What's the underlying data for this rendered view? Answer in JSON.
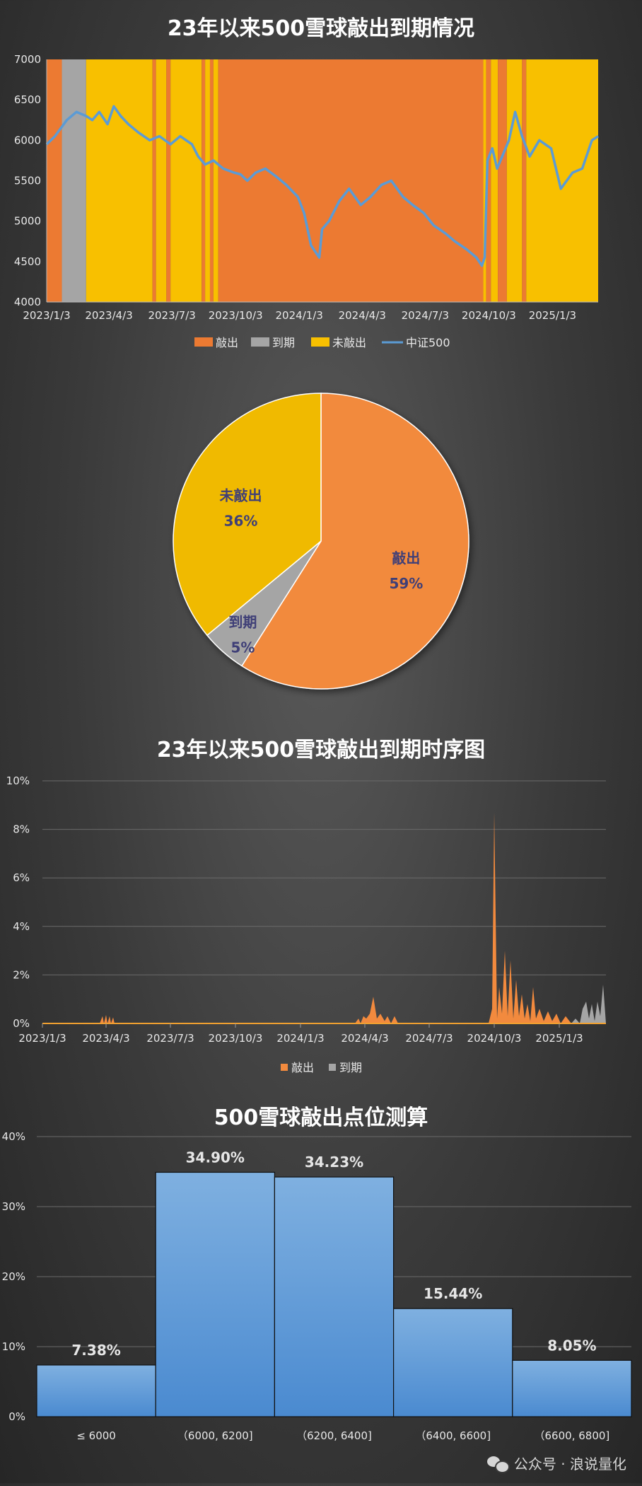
{
  "chart_data": [
    {
      "type": "area",
      "title": "23年以来500雪球敲出到期情况",
      "ylim": [
        4000,
        7000
      ],
      "yticks": [
        4000,
        4500,
        5000,
        5500,
        6000,
        6500,
        7000
      ],
      "xticks": [
        "2023/1/3",
        "2023/4/3",
        "2023/7/3",
        "2023/10/3",
        "2024/1/3",
        "2024/4/3",
        "2024/7/3",
        "2024/10/3",
        "2025/1/3"
      ],
      "legend": [
        "敲出",
        "到期",
        "未敲出",
        "中证500"
      ],
      "legend_position": "bottom",
      "colors": {
        "敲出": "#ec7a32",
        "到期": "#a5a5a5",
        "未敲出": "#f8c000",
        "中证500": "#5b9bd5"
      },
      "status_bands": [
        {
          "start": "2023/1/3",
          "end": "2023/1/25",
          "status": "敲出"
        },
        {
          "start": "2023/1/25",
          "end": "2023/3/1",
          "status": "到期"
        },
        {
          "start": "2023/3/1",
          "end": "2023/6/5",
          "status": "未敲出"
        },
        {
          "start": "2023/6/5",
          "end": "2023/6/10",
          "status": "敲出"
        },
        {
          "start": "2023/6/10",
          "end": "2023/6/25",
          "status": "未敲出"
        },
        {
          "start": "2023/6/25",
          "end": "2023/7/1",
          "status": "敲出"
        },
        {
          "start": "2023/7/1",
          "end": "2023/8/15",
          "status": "未敲出"
        },
        {
          "start": "2023/8/15",
          "end": "2023/8/20",
          "status": "敲出"
        },
        {
          "start": "2023/8/20",
          "end": "2023/8/27",
          "status": "未敲出"
        },
        {
          "start": "2023/8/27",
          "end": "2023/9/1",
          "status": "敲出"
        },
        {
          "start": "2023/9/1",
          "end": "2023/9/8",
          "status": "未敲出"
        },
        {
          "start": "2023/9/8",
          "end": "2024/9/25",
          "status": "敲出"
        },
        {
          "start": "2024/9/25",
          "end": "2024/9/29",
          "status": "未敲出"
        },
        {
          "start": "2024/9/29",
          "end": "2024/10/6",
          "status": "敲出"
        },
        {
          "start": "2024/10/6",
          "end": "2024/10/16",
          "status": "未敲出"
        },
        {
          "start": "2024/10/16",
          "end": "2024/10/29",
          "status": "敲出"
        },
        {
          "start": "2024/10/29",
          "end": "2024/11/20",
          "status": "未敲出"
        },
        {
          "start": "2024/11/20",
          "end": "2024/11/26",
          "status": "敲出"
        },
        {
          "start": "2024/11/26",
          "end": "2025/3/10",
          "status": "未敲出"
        }
      ],
      "series": [
        {
          "name": "中证500",
          "x": [
            "2023/1/3",
            "2023/1/15",
            "2023/2/1",
            "2023/2/15",
            "2023/3/1",
            "2023/3/10",
            "2023/3/20",
            "2023/4/1",
            "2023/4/10",
            "2023/4/20",
            "2023/5/1",
            "2023/5/15",
            "2023/6/1",
            "2023/6/15",
            "2023/7/1",
            "2023/7/15",
            "2023/8/1",
            "2023/8/10",
            "2023/8/20",
            "2023/9/1",
            "2023/9/15",
            "2023/10/1",
            "2023/10/10",
            "2023/10/20",
            "2023/11/1",
            "2023/11/15",
            "2023/12/1",
            "2023/12/15",
            "2024/1/1",
            "2024/1/10",
            "2024/1/20",
            "2024/2/1",
            "2024/2/5",
            "2024/2/15",
            "2024/3/1",
            "2024/3/15",
            "2024/4/1",
            "2024/4/15",
            "2024/5/1",
            "2024/5/15",
            "2024/6/1",
            "2024/6/15",
            "2024/7/1",
            "2024/7/15",
            "2024/8/1",
            "2024/8/15",
            "2024/9/1",
            "2024/9/15",
            "2024/9/23",
            "2024/9/27",
            "2024/10/1",
            "2024/10/8",
            "2024/10/15",
            "2024/11/1",
            "2024/11/10",
            "2024/11/20",
            "2024/12/1",
            "2024/12/15",
            "2025/1/1",
            "2025/1/15",
            "2025/2/1",
            "2025/2/15",
            "2025/3/1",
            "2025/3/10"
          ],
          "values": [
            5950,
            6050,
            6250,
            6350,
            6300,
            6250,
            6350,
            6200,
            6420,
            6300,
            6200,
            6100,
            6000,
            6050,
            5950,
            6050,
            5950,
            5800,
            5700,
            5750,
            5650,
            5600,
            5580,
            5500,
            5600,
            5650,
            5550,
            5450,
            5300,
            5100,
            4700,
            4550,
            4900,
            5000,
            5250,
            5400,
            5200,
            5300,
            5450,
            5500,
            5300,
            5200,
            5100,
            4950,
            4850,
            4750,
            4650,
            4550,
            4450,
            4550,
            5750,
            5900,
            5650,
            6000,
            6350,
            6050,
            5800,
            6000,
            5900,
            5400,
            5600,
            5650,
            6000,
            6050
          ]
        }
      ]
    },
    {
      "type": "pie",
      "slices": [
        {
          "label": "敲出",
          "value": 59,
          "display": "59%",
          "color": "#f28a3e"
        },
        {
          "label": "到期",
          "value": 5,
          "display": "5%",
          "color": "#a5a5a5"
        },
        {
          "label": "未敲出",
          "value": 36,
          "display": "36%",
          "color": "#f0ba00"
        }
      ]
    },
    {
      "type": "area",
      "title": "23年以来500雪球敲出到期时序图",
      "ylim": [
        0,
        10
      ],
      "yticks": [
        "0%",
        "2%",
        "4%",
        "6%",
        "8%",
        "10%"
      ],
      "xticks": [
        "2023/1/3",
        "2023/4/3",
        "2023/7/3",
        "2023/10/3",
        "2024/1/3",
        "2024/4/3",
        "2024/7/3",
        "2024/10/3",
        "2025/1/3"
      ],
      "legend": [
        "敲出",
        "到期"
      ],
      "legend_position": "bottom",
      "series": [
        {
          "name": "敲出",
          "color": "#f28a3e",
          "x": [
            "2023/3/25",
            "2023/3/29",
            "2023/3/31",
            "2023/4/3",
            "2023/4/5",
            "2023/4/8",
            "2023/4/10",
            "2023/4/13",
            "2023/4/15",
            "2024/3/20",
            "2024/3/25",
            "2024/3/28",
            "2024/4/1",
            "2024/4/5",
            "2024/4/10",
            "2024/4/15",
            "2024/4/20",
            "2024/4/25",
            "2024/5/1",
            "2024/5/5",
            "2024/5/10",
            "2024/5/15",
            "2024/5/20",
            "2024/9/25",
            "2024/9/30",
            "2024/10/3",
            "2024/10/7",
            "2024/10/10",
            "2024/10/14",
            "2024/10/18",
            "2024/10/22",
            "2024/10/26",
            "2024/10/30",
            "2024/11/3",
            "2024/11/7",
            "2024/11/11",
            "2024/11/15",
            "2024/11/19",
            "2024/11/23",
            "2024/11/27",
            "2024/12/1",
            "2024/12/6",
            "2024/12/12",
            "2024/12/18",
            "2024/12/24",
            "2024/12/30",
            "2025/1/5",
            "2025/1/12",
            "2025/1/20"
          ],
          "values": [
            0,
            0.3,
            0,
            0.35,
            0,
            0.3,
            0,
            0.25,
            0,
            0,
            0.2,
            0,
            0.3,
            0.2,
            0.4,
            1.1,
            0.2,
            0.4,
            0.1,
            0.3,
            0,
            0.3,
            0,
            0,
            0.6,
            8.7,
            0.2,
            1.5,
            0.4,
            3.0,
            0.3,
            2.6,
            0.2,
            1.8,
            0.3,
            1.2,
            0.2,
            0.8,
            0.1,
            1.5,
            0.2,
            0.6,
            0.1,
            0.5,
            0.1,
            0.4,
            0,
            0.3,
            0
          ]
        },
        {
          "name": "到期",
          "color": "#a5a5a5",
          "x": [
            "2025/1/20",
            "2025/1/26",
            "2025/2/1",
            "2025/2/5",
            "2025/2/10",
            "2025/2/14",
            "2025/2/18",
            "2025/2/22",
            "2025/2/26",
            "2025/3/2",
            "2025/3/6",
            "2025/3/10"
          ],
          "values": [
            0,
            0.2,
            0,
            0.6,
            0.9,
            0.2,
            0.8,
            0.1,
            0.9,
            0.3,
            1.6,
            0
          ]
        }
      ]
    },
    {
      "type": "bar",
      "title": "500雪球敲出点位测算",
      "ylim": [
        0,
        40
      ],
      "yticks": [
        "0%",
        "10%",
        "20%",
        "30%",
        "40%"
      ],
      "categories": [
        "≤ 6000",
        "（6000, 6200]",
        "（6200, 6400]",
        "（6400, 6600]",
        "（6600, 6800]"
      ],
      "values": [
        7.38,
        34.9,
        34.23,
        15.44,
        8.05
      ],
      "labels": [
        "7.38%",
        "34.90%",
        "34.23%",
        "15.44%",
        "8.05%"
      ],
      "color": "#5b9bd5"
    }
  ],
  "watermark": {
    "text": "公众号 · 浪说量化"
  }
}
